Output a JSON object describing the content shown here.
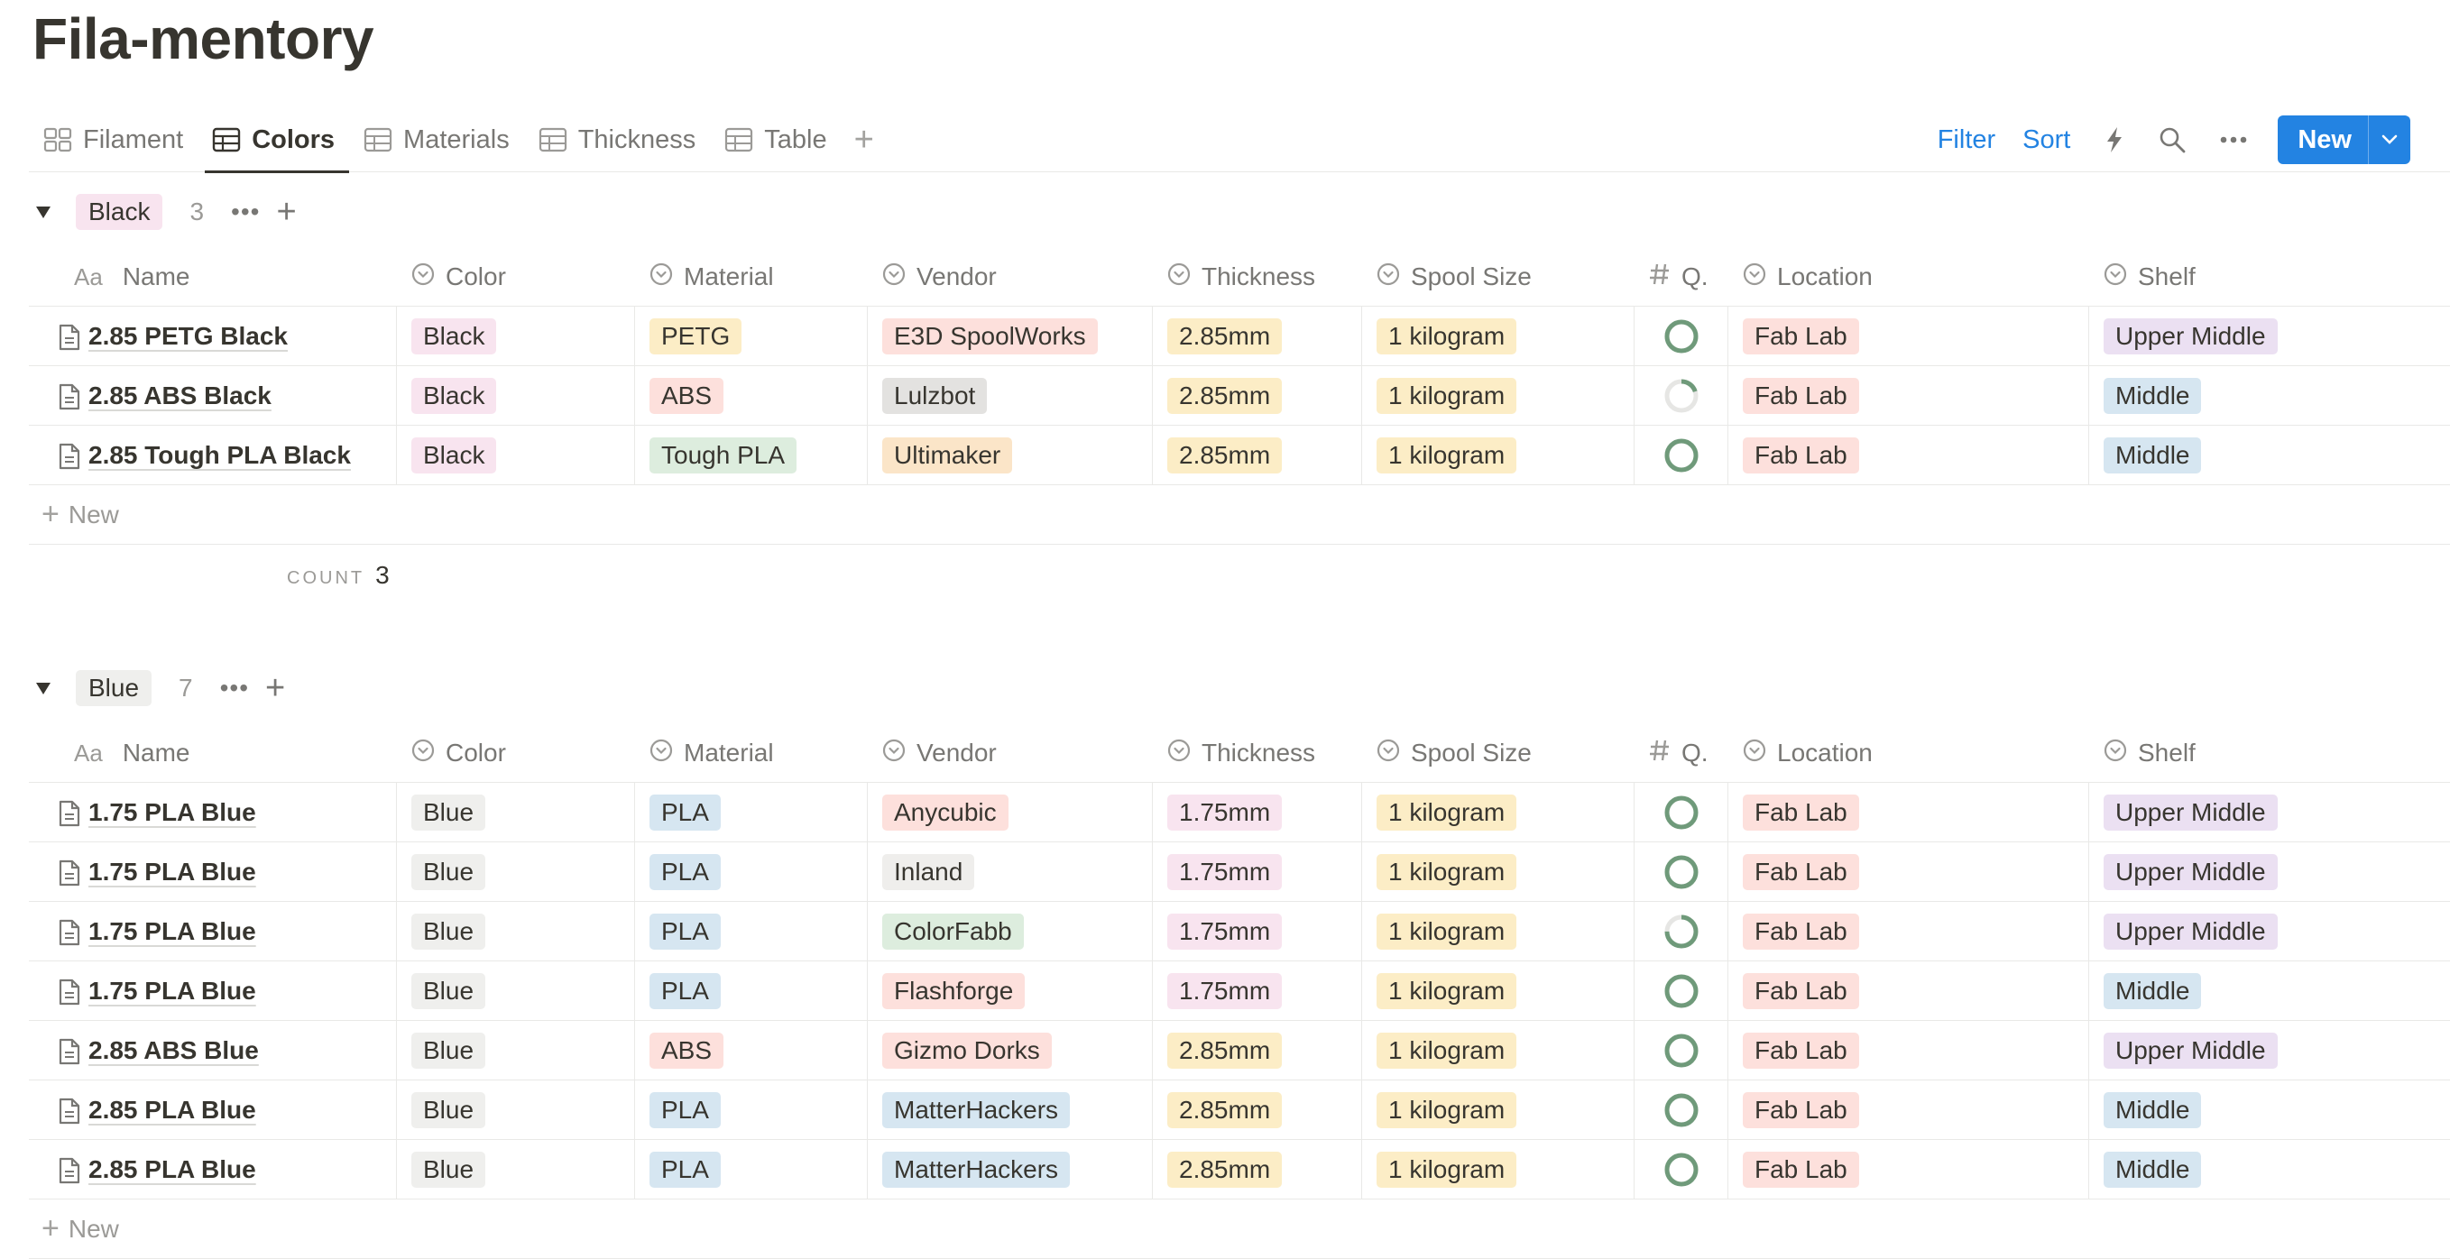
{
  "page_title": "Fila-mentory",
  "tabs": [
    {
      "label": "Filament",
      "icon": "gallery-icon",
      "active": false
    },
    {
      "label": "Colors",
      "icon": "table-icon",
      "active": true
    },
    {
      "label": "Materials",
      "icon": "table-icon",
      "active": false
    },
    {
      "label": "Thickness",
      "icon": "table-icon",
      "active": false
    },
    {
      "label": "Table",
      "icon": "table-icon",
      "active": false
    }
  ],
  "actions": {
    "filter": "Filter",
    "sort": "Sort",
    "new": "New"
  },
  "columns": [
    "Name",
    "Color",
    "Material",
    "Vendor",
    "Thickness",
    "Spool Size",
    "Q.",
    "Location",
    "Shelf"
  ],
  "colors": {
    "accent": "#2383e2",
    "ring": "#6f9a7a"
  },
  "new_row_label": "New",
  "calc_label": "COUNT",
  "groups": [
    {
      "name": "Black",
      "tag_color": "#f8e4ef",
      "count": "3",
      "calc_value": "3",
      "rows": [
        {
          "name": "2.85 PETG Black",
          "color": "Black",
          "color_c": "c-pink",
          "material": "PETG",
          "material_c": "c-yellow",
          "vendor": "E3D SpoolWorks",
          "vendor_c": "c-red",
          "thickness": "2.85mm",
          "thickness_c": "c-yellow",
          "spool": "1 kilogram",
          "spool_c": "c-yellow",
          "q": 1.0,
          "location": "Fab Lab",
          "location_c": "c-red",
          "shelf": "Upper Middle",
          "shelf_c": "c-purple"
        },
        {
          "name": "2.85 ABS Black",
          "color": "Black",
          "color_c": "c-pink",
          "material": "ABS",
          "material_c": "c-red",
          "vendor": "Lulzbot",
          "vendor_c": "c-gray",
          "thickness": "2.85mm",
          "thickness_c": "c-yellow",
          "spool": "1 kilogram",
          "spool_c": "c-yellow",
          "q": 0.2,
          "location": "Fab Lab",
          "location_c": "c-red",
          "shelf": "Middle",
          "shelf_c": "c-blue"
        },
        {
          "name": "2.85 Tough PLA Black",
          "color": "Black",
          "color_c": "c-pink",
          "material": "Tough PLA",
          "material_c": "c-green",
          "vendor": "Ultimaker",
          "vendor_c": "c-orange",
          "thickness": "2.85mm",
          "thickness_c": "c-yellow",
          "spool": "1 kilogram",
          "spool_c": "c-yellow",
          "q": 1.0,
          "location": "Fab Lab",
          "location_c": "c-red",
          "shelf": "Middle",
          "shelf_c": "c-blue"
        }
      ]
    },
    {
      "name": "Blue",
      "tag_color": "#efefed",
      "count": "7",
      "calc_value": "",
      "rows": [
        {
          "name": "1.75 PLA Blue",
          "color": "Blue",
          "color_c": "c-default",
          "material": "PLA",
          "material_c": "c-blue",
          "vendor": "Anycubic",
          "vendor_c": "c-red",
          "thickness": "1.75mm",
          "thickness_c": "c-pink",
          "spool": "1 kilogram",
          "spool_c": "c-yellow",
          "q": 1.0,
          "location": "Fab Lab",
          "location_c": "c-red",
          "shelf": "Upper Middle",
          "shelf_c": "c-purple"
        },
        {
          "name": "1.75 PLA Blue",
          "color": "Blue",
          "color_c": "c-default",
          "material": "PLA",
          "material_c": "c-blue",
          "vendor": "Inland",
          "vendor_c": "c-lgray",
          "thickness": "1.75mm",
          "thickness_c": "c-pink",
          "spool": "1 kilogram",
          "spool_c": "c-yellow",
          "q": 1.0,
          "location": "Fab Lab",
          "location_c": "c-red",
          "shelf": "Upper Middle",
          "shelf_c": "c-purple"
        },
        {
          "name": "1.75 PLA Blue",
          "color": "Blue",
          "color_c": "c-default",
          "material": "PLA",
          "material_c": "c-blue",
          "vendor": "ColorFabb",
          "vendor_c": "c-green",
          "thickness": "1.75mm",
          "thickness_c": "c-pink",
          "spool": "1 kilogram",
          "spool_c": "c-yellow",
          "q": 0.75,
          "location": "Fab Lab",
          "location_c": "c-red",
          "shelf": "Upper Middle",
          "shelf_c": "c-purple"
        },
        {
          "name": "1.75 PLA Blue",
          "color": "Blue",
          "color_c": "c-default",
          "material": "PLA",
          "material_c": "c-blue",
          "vendor": "Flashforge",
          "vendor_c": "c-red",
          "thickness": "1.75mm",
          "thickness_c": "c-pink",
          "spool": "1 kilogram",
          "spool_c": "c-yellow",
          "q": 1.0,
          "location": "Fab Lab",
          "location_c": "c-red",
          "shelf": "Middle",
          "shelf_c": "c-blue"
        },
        {
          "name": "2.85 ABS Blue",
          "color": "Blue",
          "color_c": "c-default",
          "material": "ABS",
          "material_c": "c-red",
          "vendor": "Gizmo Dorks",
          "vendor_c": "c-red",
          "thickness": "2.85mm",
          "thickness_c": "c-yellow",
          "spool": "1 kilogram",
          "spool_c": "c-yellow",
          "q": 1.0,
          "location": "Fab Lab",
          "location_c": "c-red",
          "shelf": "Upper Middle",
          "shelf_c": "c-purple"
        },
        {
          "name": "2.85 PLA Blue",
          "color": "Blue",
          "color_c": "c-default",
          "material": "PLA",
          "material_c": "c-blue",
          "vendor": "MatterHackers",
          "vendor_c": "c-blue",
          "thickness": "2.85mm",
          "thickness_c": "c-yellow",
          "spool": "1 kilogram",
          "spool_c": "c-yellow",
          "q": 1.0,
          "location": "Fab Lab",
          "location_c": "c-red",
          "shelf": "Middle",
          "shelf_c": "c-blue"
        },
        {
          "name": "2.85 PLA Blue",
          "color": "Blue",
          "color_c": "c-default",
          "material": "PLA",
          "material_c": "c-blue",
          "vendor": "MatterHackers",
          "vendor_c": "c-blue",
          "thickness": "2.85mm",
          "thickness_c": "c-yellow",
          "spool": "1 kilogram",
          "spool_c": "c-yellow",
          "q": 1.0,
          "location": "Fab Lab",
          "location_c": "c-red",
          "shelf": "Middle",
          "shelf_c": "c-blue"
        }
      ]
    }
  ]
}
